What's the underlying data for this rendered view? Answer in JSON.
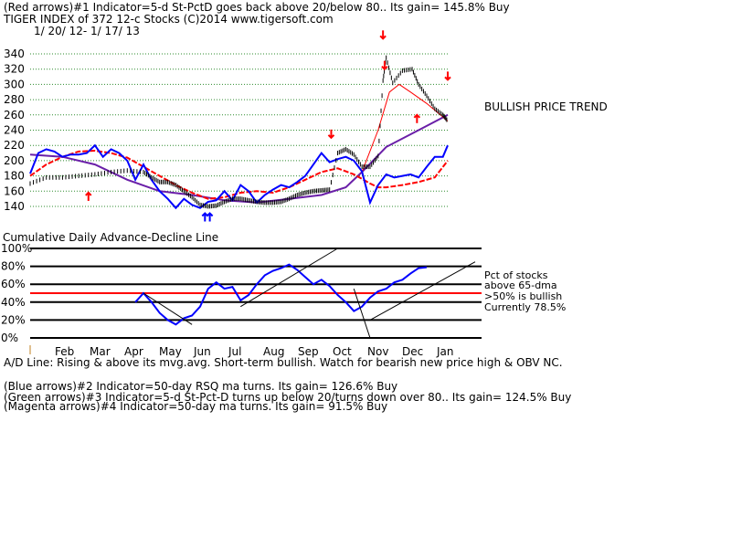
{
  "header": {
    "line1": "(Red arrows)#1 Indicator=5-d St-PctD goes back above 20/below 80.. Its gain= 145.8% Buy",
    "line2": "TIGER INDEX of  372 12-c Stocks  (C)2014  www.tigersoft.com",
    "line3": "1/ 20/ 12-  1/ 17/ 13"
  },
  "annotations": {
    "trend": "BULLISH PRICE TREND",
    "lower_title": "Cumulative Daily Advance-Decline Line",
    "pct1": "Pct of stocks",
    "pct2": "above 65-dma",
    "pct3": ">50% is bullish",
    "pct4": "Currently  78.5%",
    "ad_line": "A/D Line: Rising & above its mvg.avg. Short-term bullish. Watch for bearish new price high & OBV NC."
  },
  "footer": {
    "blue": "(Blue arrows)#2 Indicator=50-day RSQ ma turns. Its gain= 126.6% Buy",
    "green": "(Green arrows)#3 Indicator=5-d St-Pct-D turns up below 20/turns down over 80.. Its gain= 124.5% Buy",
    "magenta": "(Magenta arrows)#4 Indicator=50-day ma turns. Its gain= 91.5% Buy"
  },
  "colors": {
    "price": "#000000",
    "blue": "#0000ff",
    "red": "#ff0000",
    "purple": "#6a1fa8",
    "grid": "#000000"
  },
  "chart_data": [
    {
      "type": "line",
      "title": "TIGER INDEX of  372 12-c Stocks",
      "ylim": [
        124,
        350
      ],
      "yticks": [
        140,
        160,
        180,
        200,
        220,
        240,
        260,
        280,
        300,
        320,
        340
      ],
      "xlabels": [
        "Feb",
        "Mar",
        "Apr",
        "May",
        "Jun",
        "Jul",
        "Aug",
        "Sep",
        "Oct",
        "Nov",
        "Dec",
        "Jan"
      ],
      "price": [
        [
          0,
          170
        ],
        [
          10,
          178
        ],
        [
          20,
          178
        ],
        [
          30,
          180
        ],
        [
          40,
          182
        ],
        [
          50,
          185
        ],
        [
          60,
          187
        ],
        [
          70,
          185
        ],
        [
          75,
          178
        ],
        [
          80,
          172
        ],
        [
          85,
          172
        ],
        [
          90,
          168
        ],
        [
          95,
          160
        ],
        [
          100,
          152
        ],
        [
          105,
          142
        ],
        [
          110,
          140
        ],
        [
          115,
          141
        ],
        [
          120,
          146
        ],
        [
          125,
          150
        ],
        [
          130,
          150
        ],
        [
          135,
          148
        ],
        [
          140,
          146
        ],
        [
          145,
          145
        ],
        [
          150,
          145
        ],
        [
          155,
          146
        ],
        [
          160,
          150
        ],
        [
          165,
          155
        ],
        [
          170,
          158
        ],
        [
          175,
          160
        ],
        [
          180,
          161
        ],
        [
          185,
          162
        ],
        [
          190,
          210
        ],
        [
          195,
          215
        ],
        [
          200,
          208
        ],
        [
          205,
          192
        ],
        [
          210,
          192
        ],
        [
          215,
          206
        ],
        [
          218,
          305
        ],
        [
          220,
          335
        ],
        [
          224,
          302
        ],
        [
          230,
          318
        ],
        [
          236,
          320
        ],
        [
          240,
          300
        ],
        [
          245,
          285
        ],
        [
          250,
          268
        ],
        [
          255,
          260
        ],
        [
          258,
          252
        ]
      ],
      "blue": [
        [
          0,
          183
        ],
        [
          5,
          210
        ],
        [
          10,
          215
        ],
        [
          15,
          212
        ],
        [
          20,
          205
        ],
        [
          25,
          208
        ],
        [
          30,
          208
        ],
        [
          35,
          210
        ],
        [
          40,
          220
        ],
        [
          45,
          205
        ],
        [
          50,
          215
        ],
        [
          55,
          210
        ],
        [
          60,
          200
        ],
        [
          65,
          175
        ],
        [
          70,
          195
        ],
        [
          75,
          175
        ],
        [
          80,
          160
        ],
        [
          85,
          150
        ],
        [
          90,
          138
        ],
        [
          95,
          150
        ],
        [
          100,
          142
        ],
        [
          105,
          138
        ],
        [
          110,
          146
        ],
        [
          115,
          148
        ],
        [
          120,
          160
        ],
        [
          125,
          148
        ],
        [
          130,
          168
        ],
        [
          135,
          160
        ],
        [
          140,
          145
        ],
        [
          145,
          155
        ],
        [
          150,
          162
        ],
        [
          155,
          168
        ],
        [
          160,
          165
        ],
        [
          165,
          172
        ],
        [
          170,
          180
        ],
        [
          175,
          195
        ],
        [
          180,
          210
        ],
        [
          185,
          198
        ],
        [
          190,
          202
        ],
        [
          195,
          205
        ],
        [
          200,
          200
        ],
        [
          205,
          186
        ],
        [
          210,
          145
        ],
        [
          215,
          168
        ],
        [
          220,
          182
        ],
        [
          225,
          178
        ],
        [
          230,
          180
        ],
        [
          235,
          182
        ],
        [
          240,
          178
        ],
        [
          245,
          192
        ],
        [
          250,
          205
        ],
        [
          255,
          205
        ],
        [
          258,
          220
        ]
      ],
      "red_ma": [
        [
          0,
          180
        ],
        [
          10,
          195
        ],
        [
          20,
          205
        ],
        [
          30,
          212
        ],
        [
          40,
          213
        ],
        [
          50,
          210
        ],
        [
          60,
          204
        ],
        [
          70,
          192
        ],
        [
          80,
          180
        ],
        [
          90,
          168
        ],
        [
          100,
          158
        ],
        [
          110,
          150
        ],
        [
          120,
          152
        ],
        [
          130,
          158
        ],
        [
          140,
          160
        ],
        [
          150,
          158
        ],
        [
          160,
          165
        ],
        [
          170,
          175
        ],
        [
          180,
          185
        ],
        [
          190,
          190
        ],
        [
          200,
          182
        ],
        [
          210,
          170
        ],
        [
          215,
          165
        ],
        [
          220,
          165
        ],
        [
          230,
          168
        ],
        [
          240,
          172
        ],
        [
          250,
          178
        ],
        [
          258,
          200
        ]
      ],
      "purple_ma": [
        [
          0,
          208
        ],
        [
          20,
          205
        ],
        [
          40,
          195
        ],
        [
          60,
          175
        ],
        [
          80,
          160
        ],
        [
          100,
          155
        ],
        [
          120,
          148
        ],
        [
          140,
          145
        ],
        [
          160,
          150
        ],
        [
          180,
          155
        ],
        [
          195,
          165
        ],
        [
          205,
          185
        ],
        [
          220,
          218
        ],
        [
          240,
          240
        ],
        [
          258,
          260
        ]
      ],
      "thin_red": [
        [
          205,
          185
        ],
        [
          215,
          240
        ],
        [
          222,
          290
        ],
        [
          228,
          300
        ],
        [
          235,
          290
        ],
        [
          245,
          275
        ],
        [
          258,
          252
        ]
      ]
    },
    {
      "type": "line",
      "title": "Cumulative Daily Advance-Decline Line",
      "ylim": [
        0,
        100
      ],
      "yticks": [
        0,
        20,
        40,
        60,
        80,
        100
      ],
      "pct_above_65dma": 78.5,
      "series": [
        {
          "name": "A/D Line",
          "values": [
            [
              65,
              40
            ],
            [
              70,
              50
            ],
            [
              75,
              40
            ],
            [
              80,
              28
            ],
            [
              85,
              20
            ],
            [
              90,
              15
            ],
            [
              95,
              22
            ],
            [
              100,
              25
            ],
            [
              105,
              35
            ],
            [
              110,
              55
            ],
            [
              115,
              62
            ],
            [
              120,
              55
            ],
            [
              125,
              57
            ],
            [
              130,
              42
            ],
            [
              135,
              48
            ],
            [
              140,
              60
            ],
            [
              145,
              70
            ],
            [
              150,
              75
            ],
            [
              155,
              78
            ],
            [
              160,
              82
            ],
            [
              165,
              76
            ],
            [
              170,
              68
            ],
            [
              175,
              60
            ],
            [
              180,
              65
            ],
            [
              185,
              58
            ],
            [
              190,
              48
            ],
            [
              195,
              40
            ],
            [
              200,
              30
            ],
            [
              205,
              35
            ],
            [
              210,
              45
            ],
            [
              215,
              52
            ],
            [
              220,
              55
            ],
            [
              225,
              62
            ],
            [
              230,
              65
            ],
            [
              235,
              72
            ],
            [
              240,
              78
            ],
            [
              245,
              79
            ]
          ]
        }
      ]
    }
  ]
}
